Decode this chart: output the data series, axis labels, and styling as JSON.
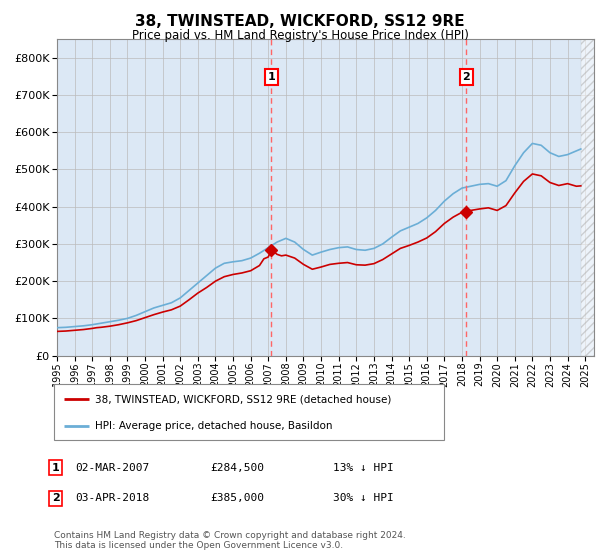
{
  "title": "38, TWINSTEAD, WICKFORD, SS12 9RE",
  "subtitle": "Price paid vs. HM Land Registry's House Price Index (HPI)",
  "hpi_label": "HPI: Average price, detached house, Basildon",
  "price_label": "38, TWINSTEAD, WICKFORD, SS12 9RE (detached house)",
  "sale1_date": "02-MAR-2007",
  "sale1_price": 284500,
  "sale1_note": "13% ↓ HPI",
  "sale2_date": "03-APR-2018",
  "sale2_price": 385000,
  "sale2_note": "30% ↓ HPI",
  "sale1_year": 2007.17,
  "sale2_year": 2018.25,
  "sale1_hpi_val": 284500,
  "sale2_hpi_val": 385000,
  "hpi_color": "#6baed6",
  "price_color": "#cc0000",
  "background_color": "#dce8f5",
  "ylim": [
    0,
    850000
  ],
  "yticks": [
    0,
    100000,
    200000,
    300000,
    400000,
    500000,
    600000,
    700000,
    800000
  ],
  "footer": "Contains HM Land Registry data © Crown copyright and database right 2024.\nThis data is licensed under the Open Government Licence v3.0.",
  "hpi_data_years": [
    1995,
    1995.25,
    1995.5,
    1995.75,
    1996,
    1996.25,
    1996.5,
    1996.75,
    1997,
    1997.25,
    1997.5,
    1997.75,
    1998,
    1998.25,
    1998.5,
    1998.75,
    1999,
    1999.25,
    1999.5,
    1999.75,
    2000,
    2000.25,
    2000.5,
    2000.75,
    2001,
    2001.25,
    2001.5,
    2001.75,
    2002,
    2002.25,
    2002.5,
    2002.75,
    2003,
    2003.25,
    2003.5,
    2003.75,
    2004,
    2004.25,
    2004.5,
    2004.75,
    2005,
    2005.25,
    2005.5,
    2005.75,
    2006,
    2006.25,
    2006.5,
    2006.75,
    2007,
    2007.25,
    2007.5,
    2007.75,
    2008,
    2008.25,
    2008.5,
    2008.75,
    2009,
    2009.25,
    2009.5,
    2009.75,
    2010,
    2010.25,
    2010.5,
    2010.75,
    2011,
    2011.25,
    2011.5,
    2011.75,
    2012,
    2012.25,
    2012.5,
    2012.75,
    2013,
    2013.25,
    2013.5,
    2013.75,
    2014,
    2014.25,
    2014.5,
    2014.75,
    2015,
    2015.25,
    2015.5,
    2015.75,
    2016,
    2016.25,
    2016.5,
    2016.75,
    2017,
    2017.25,
    2017.5,
    2017.75,
    2018,
    2018.25,
    2018.5,
    2018.75,
    2019,
    2019.25,
    2019.5,
    2019.75,
    2020,
    2020.25,
    2020.5,
    2020.75,
    2021,
    2021.25,
    2021.5,
    2021.75,
    2022,
    2022.25,
    2022.5,
    2022.75,
    2023,
    2023.25,
    2023.5,
    2023.75,
    2024,
    2024.25,
    2024.5,
    2024.75
  ],
  "hpi_data_vals": [
    75000,
    75500,
    76000,
    77000,
    78000,
    79000,
    80000,
    81500,
    83000,
    85000,
    87000,
    89000,
    91000,
    93000,
    95000,
    97500,
    100000,
    104000,
    108000,
    113000,
    118000,
    123000,
    128000,
    131500,
    135000,
    138500,
    142000,
    148500,
    155000,
    165000,
    175000,
    185000,
    195000,
    205000,
    215000,
    225000,
    235000,
    241500,
    248000,
    250000,
    252000,
    253500,
    255000,
    258500,
    262000,
    268500,
    275000,
    282500,
    290000,
    297500,
    305000,
    310000,
    315000,
    310000,
    305000,
    295000,
    285000,
    277500,
    270000,
    274000,
    278000,
    281500,
    285000,
    287500,
    290000,
    291000,
    292000,
    288500,
    285000,
    284000,
    283000,
    285500,
    288000,
    294000,
    300000,
    309000,
    318000,
    326500,
    335000,
    340000,
    345000,
    350000,
    355000,
    362500,
    370000,
    380000,
    390000,
    402500,
    415000,
    425000,
    435000,
    442500,
    450000,
    452500,
    455000,
    457500,
    460000,
    461000,
    462000,
    458500,
    455000,
    462500,
    470000,
    490000,
    510000,
    527500,
    545000,
    557500,
    570000,
    567500,
    565000,
    555000,
    545000,
    540000,
    535000,
    537500,
    540000,
    545000,
    550000,
    555000
  ],
  "price_data_years": [
    1995,
    1995.25,
    1995.5,
    1995.75,
    1996,
    1996.25,
    1996.5,
    1996.75,
    1997,
    1997.25,
    1997.5,
    1997.75,
    1998,
    1998.25,
    1998.5,
    1998.75,
    1999,
    1999.25,
    1999.5,
    1999.75,
    2000,
    2000.25,
    2000.5,
    2000.75,
    2001,
    2001.25,
    2001.5,
    2001.75,
    2002,
    2002.25,
    2002.5,
    2002.75,
    2003,
    2003.25,
    2003.5,
    2003.75,
    2004,
    2004.25,
    2004.5,
    2004.75,
    2005,
    2005.25,
    2005.5,
    2005.75,
    2006,
    2006.25,
    2006.5,
    2006.75,
    2007,
    2007.17,
    2007.5,
    2007.75,
    2008,
    2008.25,
    2008.5,
    2008.75,
    2009,
    2009.25,
    2009.5,
    2009.75,
    2010,
    2010.25,
    2010.5,
    2010.75,
    2011,
    2011.25,
    2011.5,
    2011.75,
    2012,
    2012.25,
    2012.5,
    2012.75,
    2013,
    2013.25,
    2013.5,
    2013.75,
    2014,
    2014.25,
    2014.5,
    2014.75,
    2015,
    2015.25,
    2015.5,
    2015.75,
    2016,
    2016.25,
    2016.5,
    2016.75,
    2017,
    2017.25,
    2017.5,
    2017.75,
    2018,
    2018.25,
    2018.5,
    2018.75,
    2019,
    2019.25,
    2019.5,
    2019.75,
    2020,
    2020.25,
    2020.5,
    2020.75,
    2021,
    2021.25,
    2021.5,
    2021.75,
    2022,
    2022.25,
    2022.5,
    2022.75,
    2023,
    2023.25,
    2023.5,
    2023.75,
    2024,
    2024.25,
    2024.5,
    2024.75
  ],
  "price_data_vals": [
    65000,
    65500,
    66000,
    67000,
    68000,
    69000,
    70000,
    71500,
    73000,
    75000,
    76000,
    77500,
    79000,
    81000,
    83000,
    85500,
    88000,
    91000,
    94000,
    98000,
    102000,
    106000,
    110000,
    113500,
    117000,
    120000,
    123000,
    128000,
    133000,
    141500,
    150000,
    159000,
    168000,
    175500,
    183000,
    191500,
    200000,
    206000,
    212000,
    215000,
    218000,
    220000,
    222000,
    225000,
    228000,
    235000,
    242000,
    260000,
    265000,
    284500,
    272000,
    268000,
    270000,
    266000,
    262000,
    253500,
    245000,
    238500,
    232000,
    235000,
    238000,
    241500,
    245000,
    246500,
    248000,
    249000,
    250000,
    247000,
    244000,
    243500,
    243000,
    245000,
    247000,
    252500,
    258000,
    265500,
    273000,
    280500,
    288000,
    292000,
    296000,
    300500,
    305000,
    310500,
    316000,
    324500,
    333000,
    344000,
    355000,
    363500,
    372000,
    378500,
    385000,
    387500,
    390000,
    392000,
    394000,
    395500,
    397000,
    393500,
    390000,
    396500,
    403000,
    420000,
    437000,
    452500,
    468000,
    478000,
    488000,
    485500,
    483000,
    474000,
    465000,
    461000,
    457000,
    459500,
    462000,
    458500,
    455000,
    456000
  ]
}
